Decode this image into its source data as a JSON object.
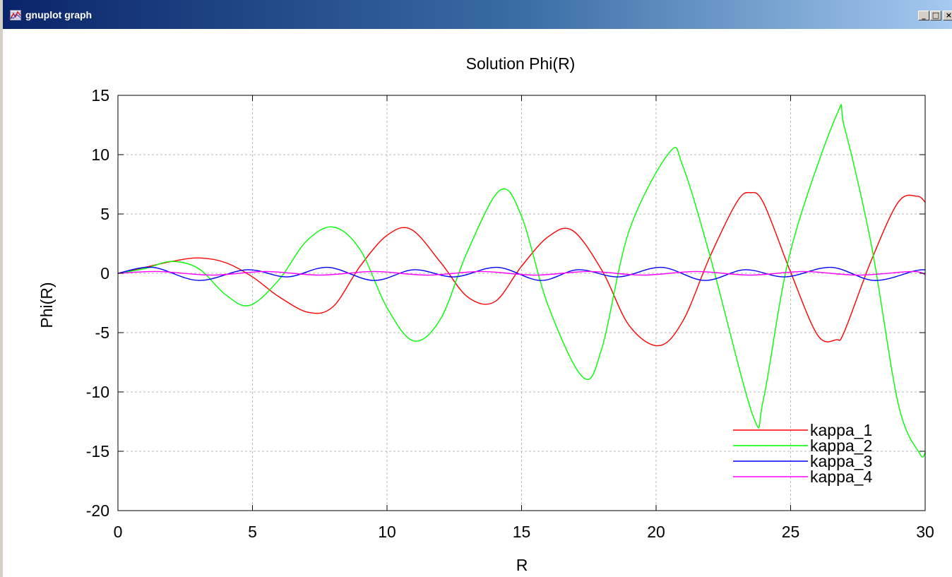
{
  "window": {
    "title": "gnuplot graph",
    "minimize_glyph": "_",
    "maximize_glyph": "□",
    "close_glyph": "×",
    "icon": "gnuplot-app-icon"
  },
  "chart_data": {
    "type": "line",
    "title": "Solution Phi(R)",
    "xlabel": "R",
    "ylabel": "Phi(R)",
    "xlim": [
      0,
      30
    ],
    "ylim": [
      -20,
      15
    ],
    "xticks": [
      "0",
      "5",
      "10",
      "15",
      "20",
      "25",
      "30"
    ],
    "yticks": [
      "15",
      "10",
      "5",
      "0",
      "-5",
      "-10",
      "-15",
      "-20"
    ],
    "grid": true,
    "legend_position": "bottom-right",
    "series": [
      {
        "name": "kappa_1",
        "color": "#ff0000",
        "x": [
          0,
          1,
          2,
          3,
          4,
          5,
          6,
          7.1,
          8,
          9,
          10,
          10.9,
          12,
          13,
          14,
          15,
          16,
          16.9,
          18,
          19,
          20.1,
          21,
          22,
          23,
          23.5,
          24,
          25,
          26,
          26.7,
          27,
          28,
          29,
          29.7,
          30
        ],
        "y": [
          0,
          0.5,
          1.0,
          1.3,
          0.9,
          -0.3,
          -2.0,
          -3.3,
          -2.8,
          0.6,
          3.2,
          3.7,
          0.9,
          -2.0,
          -2.4,
          0.6,
          3.1,
          3.6,
          0.2,
          -4.4,
          -6.1,
          -4.0,
          1.4,
          6.0,
          6.8,
          5.9,
          0.1,
          -5.2,
          -5.6,
          -4.9,
          1.1,
          6.0,
          6.5,
          6.0
        ]
      },
      {
        "name": "kappa_2",
        "color": "#00ff00",
        "x": [
          0,
          1,
          2,
          3,
          4,
          4.9,
          6,
          7,
          8,
          9,
          10,
          11,
          12,
          13,
          14.2,
          15,
          16,
          17.3,
          18,
          19,
          20.5,
          21,
          22,
          23.6,
          24,
          25,
          26.7,
          27,
          28,
          29,
          29.8,
          30
        ],
        "y": [
          0,
          0.4,
          1.0,
          0.4,
          -1.8,
          -2.7,
          -0.5,
          2.7,
          3.9,
          2.0,
          -2.9,
          -5.7,
          -3.8,
          1.9,
          7.0,
          4.8,
          -2.8,
          -8.8,
          -6.2,
          3.6,
          10.2,
          9.0,
          1.5,
          -12.0,
          -10.5,
          1.9,
          13.3,
          12.3,
          2.4,
          -11.0,
          -15.2,
          -15.1
        ]
      },
      {
        "name": "kappa_3",
        "color": "#0000ff",
        "x": [
          0,
          1.3,
          3,
          4.8,
          6.3,
          7.8,
          9.5,
          11,
          12.5,
          14.1,
          15.7,
          17.1,
          18.6,
          20.2,
          21.8,
          23.3,
          24.8,
          26.5,
          28.1,
          29.6,
          30
        ],
        "y": [
          0,
          0.5,
          -0.6,
          0.3,
          -0.3,
          0.5,
          -0.6,
          0.3,
          -0.3,
          0.5,
          -0.6,
          0.3,
          -0.3,
          0.5,
          -0.6,
          0.3,
          -0.3,
          0.5,
          -0.6,
          0.2,
          0.3
        ]
      },
      {
        "name": "kappa_4",
        "color": "#ff00ff",
        "x": [
          0,
          1.5,
          3.5,
          5.5,
          7.5,
          9.5,
          11.5,
          13.5,
          15.5,
          17.5,
          19.5,
          21.5,
          23.5,
          25.5,
          27.5,
          29.5,
          30
        ],
        "y": [
          0,
          0.15,
          -0.15,
          0.15,
          -0.15,
          0.15,
          -0.15,
          0.15,
          -0.15,
          0.15,
          -0.15,
          0.15,
          -0.15,
          0.15,
          -0.15,
          0.15,
          -0.1
        ]
      }
    ]
  }
}
